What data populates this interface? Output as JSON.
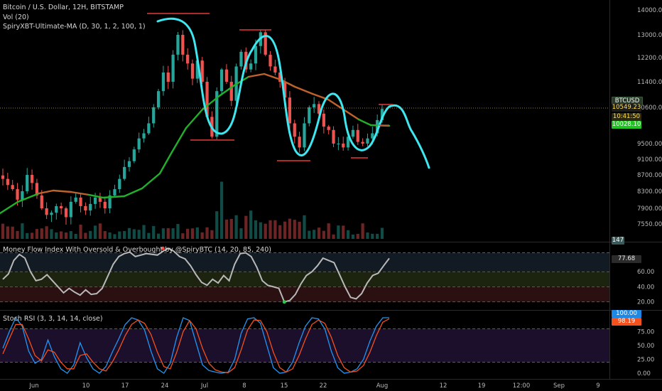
{
  "main": {
    "title": "Bitcoin / U.S. Dollar, 12H, BITSTAMP",
    "vol_label": "Vol (20)",
    "ma_label": "SpiryXBT-Ultimate-MA (D, 30, 1, 2, 100, 1)",
    "symbol_tag": "BTCUSD",
    "last_price": "10549.23",
    "countdown": "10:41:50",
    "ma_value": "10028.10",
    "vol_value": "147",
    "y_ticks": [
      "14000.00",
      "13000.00",
      "12200.00",
      "11400.00",
      "10600.00",
      "9500.00",
      "9100.00",
      "8700.00",
      "8300.00",
      "7900.00",
      "7550.00"
    ]
  },
  "mfi": {
    "label": "Money Flow Index With Oversold & Overbought by @SpiryBTC (14, 20, 85, 240)",
    "value": "77.68",
    "y_ticks": [
      "60.00",
      "40.00",
      "20.00"
    ]
  },
  "stoch": {
    "label": "Stoch RSI (3, 3, 14, 14, close)",
    "value_k": "100.00",
    "value_d": "98.19",
    "y_ticks": [
      "75.00",
      "50.00",
      "25.00",
      "0.00"
    ]
  },
  "x_ticks": [
    "Jun",
    "10",
    "17",
    "24",
    "Jul",
    "8",
    "15",
    "22",
    "Aug",
    "12",
    "19",
    "12:00",
    "Sep",
    "9"
  ],
  "colors": {
    "up": "#26a69a",
    "down": "#ef5350",
    "ma_green": "#22b02b",
    "ma_orange": "#c0622b",
    "drawing": "#3ee6f0",
    "support": "#e53935",
    "mfi_line": "#b8b8b8",
    "stoch_k": "#2196f3",
    "stoch_d": "#f4511e"
  },
  "chart_data": [
    {
      "type": "candlestick",
      "title": "Bitcoin / U.S. Dollar, 12H, BITSTAMP",
      "y_scale": "log",
      "y_ticks": [
        14000,
        13000,
        12200,
        11400,
        10600,
        9500,
        9100,
        8700,
        8300,
        7900,
        7550
      ],
      "x_ticks": [
        "Jun",
        "10",
        "17",
        "24",
        "Jul",
        "8",
        "15",
        "22",
        "Aug",
        "12",
        "19",
        "12:00",
        "Sep",
        "9"
      ],
      "close_series": [
        8600,
        8450,
        8350,
        8100,
        8300,
        8700,
        8500,
        8200,
        7900,
        7750,
        7800,
        7950,
        7900,
        7700,
        8050,
        8150,
        7950,
        7850,
        8000,
        8150,
        8050,
        7900,
        8200,
        8350,
        8600,
        8900,
        9050,
        9350,
        9650,
        9800,
        10100,
        10600,
        11100,
        11700,
        11400,
        12300,
        13000,
        12300,
        12000,
        11500,
        12100,
        11400,
        10300,
        9700,
        11100,
        11800,
        11400,
        10800,
        11900,
        12400,
        11800,
        12000,
        12600,
        13100,
        12300,
        11900,
        11700,
        11400,
        10900,
        10100,
        9700,
        9400,
        10100,
        10600,
        10700,
        10400,
        10000,
        9900,
        9500,
        9500,
        9400,
        9700,
        9900,
        9550,
        9500,
        9650,
        9800,
        10200,
        10550
      ],
      "last_price": 10549.23,
      "ma_last": 10028.1
    },
    {
      "type": "line",
      "title": "Money Flow Index With Oversold & Overbought by @SpiryBTC (14, 20, 85, 240)",
      "ylim": [
        15,
        95
      ],
      "bands": [
        20,
        40,
        60,
        85
      ],
      "values": [
        50,
        57,
        75,
        83,
        78,
        60,
        48,
        50,
        56,
        48,
        40,
        32,
        38,
        33,
        29,
        36,
        30,
        31,
        38,
        54,
        70,
        80,
        84,
        86,
        80,
        82,
        84,
        83,
        82,
        87,
        91,
        87,
        80,
        77,
        68,
        56,
        46,
        42,
        50,
        45,
        55,
        48,
        70,
        84,
        85,
        80,
        66,
        48,
        42,
        40,
        38,
        20,
        22,
        30,
        44,
        55,
        60,
        68,
        78,
        75,
        72,
        56,
        40,
        26,
        24,
        31,
        45,
        55,
        58,
        68,
        77.68
      ],
      "last": 77.68
    },
    {
      "type": "line",
      "title": "Stoch RSI (3, 3, 14, 14, close)",
      "ylim": [
        0,
        100
      ],
      "series": [
        {
          "name": "K",
          "values": [
            45,
            75,
            100,
            85,
            40,
            18,
            25,
            60,
            30,
            8,
            0,
            15,
            55,
            28,
            8,
            0,
            12,
            38,
            62,
            88,
            100,
            96,
            78,
            40,
            8,
            0,
            18,
            65,
            100,
            95,
            55,
            15,
            5,
            2,
            0,
            2,
            25,
            72,
            98,
            100,
            90,
            50,
            10,
            0,
            2,
            20,
            55,
            85,
            100,
            98,
            80,
            40,
            10,
            0,
            2,
            8,
            25,
            58,
            85,
            100,
            100
          ]
        },
        {
          "name": "D",
          "values": [
            35,
            62,
            88,
            88,
            62,
            32,
            22,
            42,
            38,
            20,
            8,
            8,
            32,
            35,
            20,
            8,
            4,
            20,
            42,
            68,
            88,
            96,
            90,
            70,
            38,
            12,
            8,
            38,
            75,
            95,
            80,
            45,
            18,
            6,
            2,
            1,
            10,
            42,
            78,
            96,
            95,
            75,
            38,
            10,
            2,
            8,
            32,
            62,
            88,
            96,
            90,
            65,
            32,
            10,
            2,
            4,
            14,
            38,
            68,
            92,
            98.19
          ]
        }
      ],
      "last_k": 100.0,
      "last_d": 98.19
    }
  ]
}
